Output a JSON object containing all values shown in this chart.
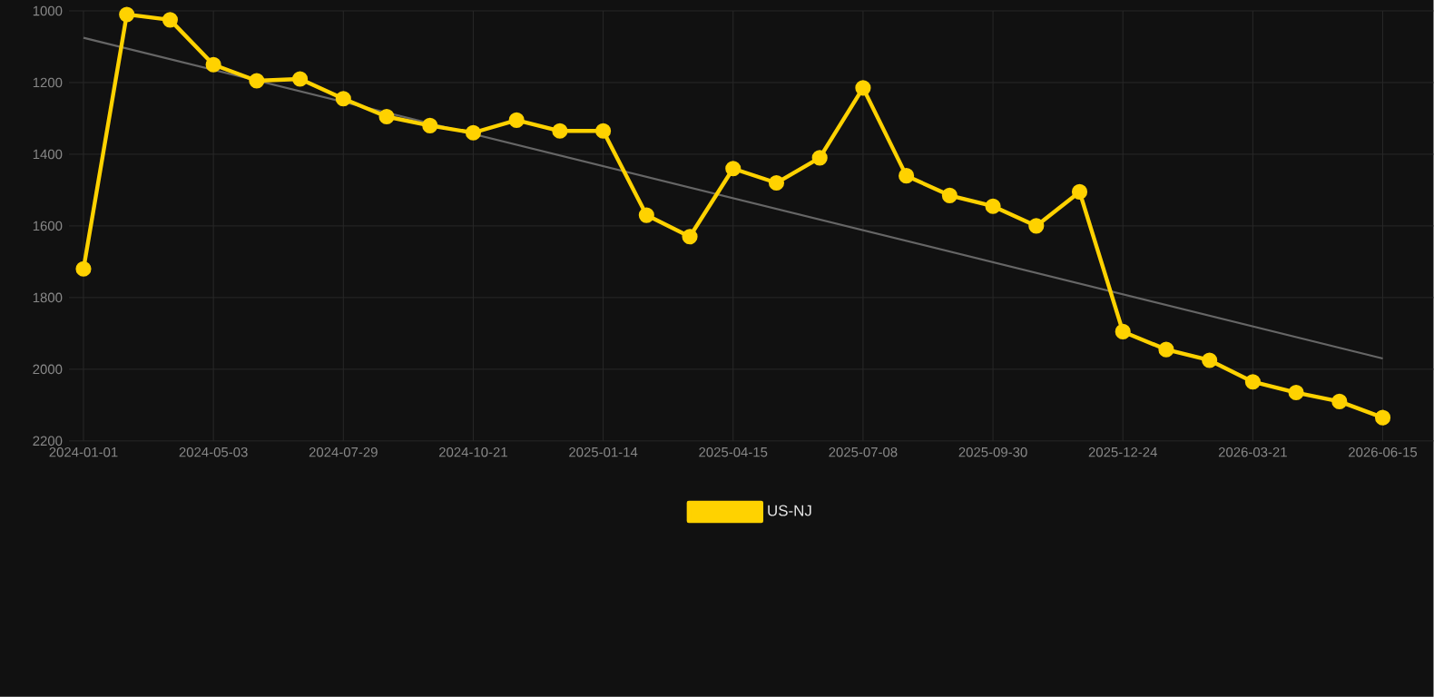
{
  "chart_data": {
    "type": "line",
    "categories": [
      "2024-01-01",
      null,
      null,
      "2024-05-03",
      null,
      null,
      "2024-07-29",
      null,
      null,
      "2024-10-21",
      null,
      null,
      "2025-01-14",
      null,
      null,
      "2025-04-15",
      null,
      null,
      "2025-07-08",
      null,
      null,
      "2025-09-30",
      null,
      null,
      "2025-12-24",
      null,
      null,
      "2026-03-21",
      null,
      null,
      "2026-06-15"
    ],
    "series": [
      {
        "name": "US-NJ",
        "color": "#ffd200",
        "marker": "circle",
        "values": [
          1720,
          1010,
          1025,
          1150,
          1195,
          1190,
          1245,
          1295,
          1320,
          1340,
          1305,
          1335,
          1335,
          1570,
          1630,
          1440,
          1480,
          1410,
          1215,
          1460,
          1515,
          1545,
          1600,
          1505,
          1895,
          1945,
          1975,
          2035,
          2065,
          2090,
          2135
        ]
      },
      {
        "color": "#666666",
        "marker": "none",
        "values": [
          1075,
          null,
          null,
          null,
          null,
          null,
          null,
          null,
          null,
          null,
          null,
          null,
          null,
          null,
          null,
          null,
          null,
          null,
          null,
          null,
          null,
          null,
          null,
          null,
          null,
          null,
          null,
          null,
          null,
          null,
          1970
        ]
      }
    ],
    "ylim": [
      2200,
      1000
    ],
    "yticks": [
      1000,
      1200,
      1400,
      1600,
      1800,
      2000,
      2200
    ],
    "grid": true,
    "legend": "bottom",
    "line_style": "solid"
  }
}
